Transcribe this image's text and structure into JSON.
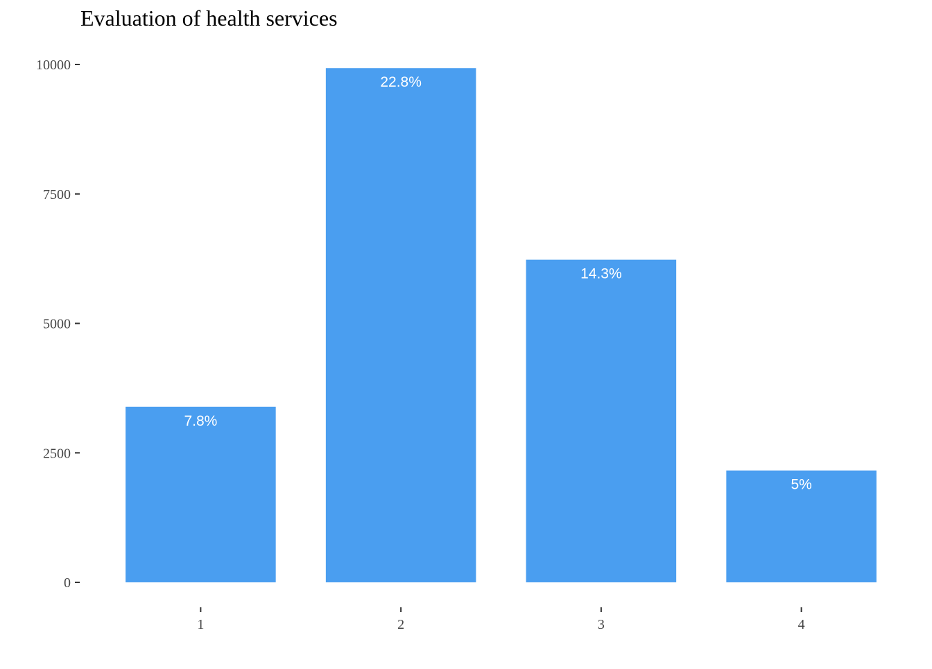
{
  "chart_data": {
    "type": "bar",
    "title": "Evaluation of health services",
    "xlabel": "",
    "ylabel": "",
    "categories": [
      "1",
      "2",
      "3",
      "4"
    ],
    "values": [
      3390,
      9930,
      6230,
      2160
    ],
    "labels": [
      "7.8%",
      "22.8%",
      "14.3%",
      "5%"
    ],
    "yticks": [
      0,
      2500,
      5000,
      7500,
      10000
    ],
    "ytick_labels": [
      "0",
      "2500",
      "5000",
      "7500",
      "10000"
    ],
    "ylim": [
      0,
      10000
    ],
    "bar_color": "#4a9ef0",
    "label_color": "#ffffff",
    "grid": false,
    "legend": "none"
  }
}
